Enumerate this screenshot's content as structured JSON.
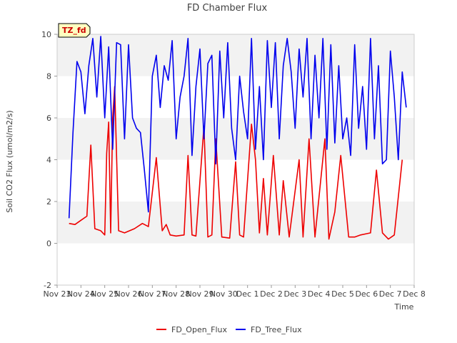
{
  "chart_data": {
    "type": "line",
    "title": "FD Chamber Flux",
    "xlabel": "Time",
    "ylabel": "Soil CO2 Flux (umol/m2/s)",
    "xlim": [
      "2023-11-23",
      "2023-12-08"
    ],
    "ylim": [
      -2,
      10
    ],
    "x_ticks": [
      "Nov 23",
      "Nov 24",
      "Nov 25",
      "Nov 26",
      "Nov 27",
      "Nov 28",
      "Nov 29",
      "Nov 30",
      "Dec 1",
      "Dec 2",
      "Dec 3",
      "Dec 4",
      "Dec 5",
      "Dec 6",
      "Dec 7",
      "Dec 8"
    ],
    "y_ticks": [
      -2,
      0,
      2,
      4,
      6,
      8,
      10
    ],
    "grid": "horizontal bands",
    "legend_position": "bottom",
    "badge": "TZ_fd",
    "series": [
      {
        "name": "FD_Open_Flux",
        "color": "#ee0000",
        "x": [
          "2023-11-23 12:00",
          "2023-11-23 18:00",
          "2023-11-24 00:00",
          "2023-11-24 06:00",
          "2023-11-24 10:00",
          "2023-11-24 14:00",
          "2023-11-24 20:00",
          "2023-11-25 00:00",
          "2023-11-25 02:00",
          "2023-11-25 04:00",
          "2023-11-25 06:00",
          "2023-11-25 08:00",
          "2023-11-25 10:00",
          "2023-11-25 14:00",
          "2023-11-25 20:00",
          "2023-11-26 06:00",
          "2023-11-26 14:00",
          "2023-11-26 20:00",
          "2023-11-27 04:00",
          "2023-11-27 10:00",
          "2023-11-27 14:00",
          "2023-11-27 18:00",
          "2023-11-28 00:00",
          "2023-11-28 08:00",
          "2023-11-28 12:00",
          "2023-11-28 16:00",
          "2023-11-28 20:00",
          "2023-11-29 04:00",
          "2023-11-29 08:00",
          "2023-11-29 12:00",
          "2023-11-29 16:00",
          "2023-11-29 22:00",
          "2023-11-30 06:00",
          "2023-11-30 12:00",
          "2023-11-30 16:00",
          "2023-11-30 20:00",
          "2023-12-01 04:00",
          "2023-12-01 08:00",
          "2023-12-01 12:00",
          "2023-12-01 16:00",
          "2023-12-01 20:00",
          "2023-12-02 02:00",
          "2023-12-02 08:00",
          "2023-12-02 12:00",
          "2023-12-02 18:00",
          "2023-12-03 04:00",
          "2023-12-03 08:00",
          "2023-12-03 14:00",
          "2023-12-03 20:00",
          "2023-12-04 06:00",
          "2023-12-04 10:00",
          "2023-12-04 16:00",
          "2023-12-04 22:00",
          "2023-12-05 06:00",
          "2023-12-05 12:00",
          "2023-12-05 18:00",
          "2023-12-06 04:00",
          "2023-12-06 10:00",
          "2023-12-06 16:00",
          "2023-12-06 22:00",
          "2023-12-07 04:00",
          "2023-12-07 12:00"
        ],
        "y": [
          0.95,
          0.9,
          1.1,
          1.3,
          4.7,
          0.7,
          0.6,
          0.4,
          4.3,
          5.8,
          0.5,
          6.0,
          7.5,
          0.6,
          0.5,
          0.7,
          0.95,
          0.8,
          4.1,
          0.6,
          0.9,
          0.4,
          0.35,
          0.4,
          4.2,
          0.4,
          0.35,
          5.6,
          0.3,
          0.4,
          5.0,
          0.3,
          0.25,
          3.9,
          0.4,
          0.3,
          5.7,
          4.0,
          0.5,
          3.1,
          0.4,
          4.2,
          0.4,
          3.0,
          0.3,
          4.0,
          0.3,
          5.0,
          0.3,
          5.0,
          0.2,
          1.5,
          4.2,
          0.3,
          0.3,
          0.4,
          0.5,
          3.5,
          0.5,
          0.2,
          0.4,
          4.0
        ]
      },
      {
        "name": "FD_Tree_Flux",
        "color": "#0000ee",
        "x": [
          "2023-11-23 12:00",
          "2023-11-23 16:00",
          "2023-11-23 20:00",
          "2023-11-24 00:00",
          "2023-11-24 04:00",
          "2023-11-24 08:00",
          "2023-11-24 12:00",
          "2023-11-24 16:00",
          "2023-11-24 20:00",
          "2023-11-25 00:00",
          "2023-11-25 04:00",
          "2023-11-25 08:00",
          "2023-11-25 12:00",
          "2023-11-25 16:00",
          "2023-11-25 20:00",
          "2023-11-26 00:00",
          "2023-11-26 04:00",
          "2023-11-26 08:00",
          "2023-11-26 12:00",
          "2023-11-26 16:00",
          "2023-11-26 20:00",
          "2023-11-27 00:00",
          "2023-11-27 04:00",
          "2023-11-27 08:00",
          "2023-11-27 12:00",
          "2023-11-27 16:00",
          "2023-11-27 20:00",
          "2023-11-28 00:00",
          "2023-11-28 04:00",
          "2023-11-28 08:00",
          "2023-11-28 12:00",
          "2023-11-28 16:00",
          "2023-11-28 20:00",
          "2023-11-29 00:00",
          "2023-11-29 04:00",
          "2023-11-29 08:00",
          "2023-11-29 12:00",
          "2023-11-29 16:00",
          "2023-11-29 20:00",
          "2023-11-30 00:00",
          "2023-11-30 04:00",
          "2023-11-30 08:00",
          "2023-11-30 12:00",
          "2023-11-30 16:00",
          "2023-11-30 20:00",
          "2023-12-01 00:00",
          "2023-12-01 04:00",
          "2023-12-01 08:00",
          "2023-12-01 12:00",
          "2023-12-01 16:00",
          "2023-12-01 20:00",
          "2023-12-02 00:00",
          "2023-12-02 04:00",
          "2023-12-02 08:00",
          "2023-12-02 12:00",
          "2023-12-02 16:00",
          "2023-12-02 20:00",
          "2023-12-03 00:00",
          "2023-12-03 04:00",
          "2023-12-03 08:00",
          "2023-12-03 12:00",
          "2023-12-03 16:00",
          "2023-12-03 20:00",
          "2023-12-04 00:00",
          "2023-12-04 04:00",
          "2023-12-04 08:00",
          "2023-12-04 12:00",
          "2023-12-04 16:00",
          "2023-12-04 20:00",
          "2023-12-05 00:00",
          "2023-12-05 04:00",
          "2023-12-05 08:00",
          "2023-12-05 12:00",
          "2023-12-05 16:00",
          "2023-12-05 20:00",
          "2023-12-06 00:00",
          "2023-12-06 04:00",
          "2023-12-06 08:00",
          "2023-12-06 12:00",
          "2023-12-06 16:00",
          "2023-12-06 20:00",
          "2023-12-07 00:00",
          "2023-12-07 04:00",
          "2023-12-07 08:00",
          "2023-12-07 12:00",
          "2023-12-07 16:00"
        ],
        "y": [
          1.2,
          5.3,
          8.7,
          8.2,
          6.2,
          8.5,
          9.8,
          7.0,
          9.9,
          6.0,
          9.4,
          4.5,
          9.6,
          9.5,
          5.0,
          9.5,
          6.0,
          5.5,
          5.3,
          3.5,
          1.5,
          8.0,
          9.0,
          6.5,
          8.5,
          7.8,
          9.7,
          5.0,
          7.0,
          8.0,
          9.8,
          4.2,
          7.5,
          9.3,
          5.0,
          8.6,
          9.0,
          3.8,
          9.2,
          6.0,
          9.6,
          5.5,
          4.0,
          8.0,
          6.3,
          5.0,
          9.8,
          4.5,
          7.5,
          4.0,
          9.7,
          6.5,
          9.6,
          5.0,
          8.5,
          9.8,
          8.2,
          5.5,
          9.3,
          7.0,
          9.8,
          5.0,
          9.0,
          6.0,
          9.8,
          4.5,
          9.5,
          4.8,
          8.5,
          5.0,
          6.0,
          4.2,
          9.5,
          5.5,
          7.5,
          4.5,
          9.8,
          5.0,
          8.5,
          3.8,
          4.0,
          9.2,
          7.0,
          4.0,
          8.2,
          6.5
        ]
      }
    ]
  }
}
